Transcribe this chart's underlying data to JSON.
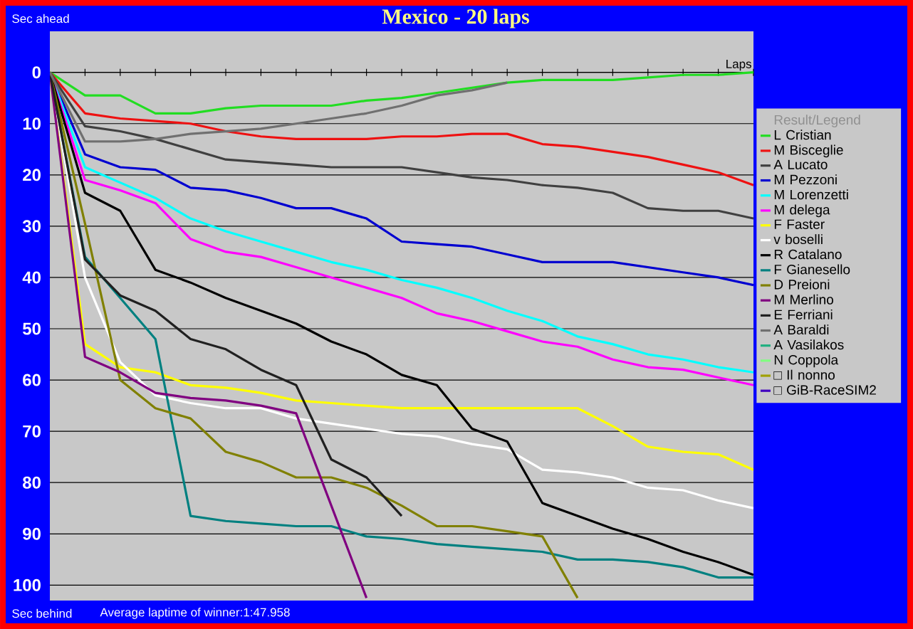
{
  "chart_data": {
    "type": "line",
    "title": "Mexico - 20 laps",
    "xlabel": "Laps",
    "legend_title": "Result/Legend",
    "annotations": [
      "Sec ahead",
      "Sec behind",
      "Average laptime of winner:1:47.958"
    ],
    "categories": [
      null,
      null,
      null,
      null,
      null,
      null,
      null,
      null,
      null,
      null,
      null,
      null,
      null,
      null,
      null,
      null,
      null,
      null,
      null,
      null,
      null
    ],
    "ylim": [
      103,
      -8
    ],
    "yticks": [
      0,
      10,
      20,
      30,
      40,
      50,
      60,
      70,
      80,
      90,
      100
    ],
    "grid": "y",
    "legend": "right",
    "series": [
      {
        "name": "L Cristian",
        "color": "#22dd22",
        "values": [
          0,
          4.5,
          4.5,
          8,
          8,
          7,
          6.5,
          6.5,
          6.5,
          5.5,
          5,
          4,
          3,
          2,
          1.5,
          1.5,
          1.5,
          1,
          0.5,
          0.5,
          0
        ]
      },
      {
        "name": "M Bisceglie",
        "color": "#ee1111",
        "values": [
          0,
          8,
          9,
          9.5,
          10,
          11.5,
          12.5,
          13,
          13,
          13,
          12.5,
          12.5,
          12,
          12,
          14,
          14.5,
          15.5,
          16.5,
          18,
          19.5,
          22
        ]
      },
      {
        "name": "A Lucato",
        "color": "#404040",
        "values": [
          0,
          10.5,
          11.5,
          13,
          15,
          17,
          17.5,
          18,
          18.5,
          18.5,
          18.5,
          19.5,
          20.5,
          21,
          22,
          22.5,
          23.5,
          26.5,
          27,
          27,
          28.5
        ]
      },
      {
        "name": "M Pezzoni",
        "color": "#0000d0",
        "values": [
          0,
          16,
          18.5,
          19,
          22.5,
          23,
          24.5,
          26.5,
          26.5,
          28.5,
          33,
          33.5,
          34,
          35.5,
          37,
          37,
          37,
          38,
          39,
          40,
          41.5
        ]
      },
      {
        "name": "M Lorenzetti",
        "color": "#00ffff",
        "values": [
          0,
          18.5,
          21.5,
          24.5,
          28.5,
          31,
          33,
          35,
          37,
          38.5,
          40.5,
          42,
          44,
          46.5,
          48.5,
          51.5,
          53,
          55,
          56,
          57.5,
          58.5
        ]
      },
      {
        "name": "M delega",
        "color": "#ff00ff",
        "values": [
          0,
          21,
          23,
          25.5,
          32.5,
          35,
          36,
          38,
          40,
          42,
          44,
          47,
          48.5,
          50.5,
          52.5,
          53.5,
          56,
          57.5,
          58,
          59.5,
          61
        ]
      },
      {
        "name": "F Faster",
        "color": "#ffff00",
        "values": [
          0,
          53,
          57.5,
          58.5,
          61,
          61.5,
          62.5,
          64,
          64.5,
          65,
          65.5,
          65.5,
          65.5,
          65.5,
          65.5,
          65.5,
          69,
          73,
          74,
          74.5,
          77.5
        ]
      },
      {
        "name": "v boselli",
        "color": "#ffffff",
        "values": [
          0,
          40,
          56.5,
          63,
          64.5,
          65.5,
          65.5,
          67.5,
          68.5,
          69.5,
          70.5,
          71,
          72.5,
          73.5,
          77.5,
          78,
          79,
          81,
          81.5,
          83.5,
          85
        ]
      },
      {
        "name": "R Catalano",
        "color": "#000000",
        "values": [
          0,
          23.5,
          27,
          38.5,
          41,
          44,
          46.5,
          49,
          52.5,
          55,
          59,
          61,
          69.5,
          72,
          84,
          86.5,
          89,
          91,
          93.5,
          95.5,
          98
        ]
      },
      {
        "name": "F Gianesello",
        "color": "#008080",
        "values": [
          0,
          36,
          44,
          52,
          86.5,
          87.5,
          88,
          88.5,
          88.5,
          90.5,
          91,
          92,
          92.5,
          93,
          93.5,
          95,
          95,
          95.5,
          96.5,
          98.5,
          98.5
        ]
      },
      {
        "name": "D Preioni",
        "color": "#808000",
        "values": [
          0,
          29.5,
          60,
          65.5,
          67.5,
          74,
          76,
          79,
          79,
          81,
          84.5,
          88.5,
          88.5,
          89.5,
          90.5,
          102.5,
          null,
          null,
          null,
          null,
          null
        ]
      },
      {
        "name": "M Merlino",
        "color": "#800080",
        "values": [
          0,
          55.5,
          58.5,
          62.5,
          63.5,
          64,
          65,
          66.5,
          84.5,
          102.5,
          null,
          null,
          null,
          null,
          null,
          null,
          null,
          null,
          null,
          null,
          null
        ]
      },
      {
        "name": "E Ferriani",
        "color": "#202020",
        "values": [
          0,
          36.5,
          43.5,
          46.5,
          52,
          54,
          58,
          61,
          75.5,
          79,
          86.5,
          null,
          null,
          null,
          null,
          null,
          null,
          null,
          null,
          null,
          null
        ]
      },
      {
        "name": "A Baraldi",
        "color": "#707070",
        "values": [
          0,
          13.5,
          13.5,
          13,
          12,
          11.5,
          11,
          10,
          9,
          8,
          6.5,
          4.5,
          3.5,
          2,
          null,
          null,
          null,
          null,
          null,
          null,
          null
        ]
      },
      {
        "name": "A Vasilakos",
        "color": "#20b080",
        "values": [
          null,
          null,
          null,
          null,
          null,
          null,
          null,
          null,
          null,
          null,
          null,
          null,
          null,
          null,
          null,
          null,
          null,
          null,
          null,
          null,
          null
        ]
      },
      {
        "name": "N Coppola",
        "color": "#80ff80",
        "values": [
          null,
          null,
          null,
          null,
          null,
          null,
          null,
          null,
          null,
          null,
          null,
          null,
          null,
          null,
          null,
          null,
          null,
          null,
          null,
          null,
          null
        ]
      },
      {
        "name": "□ Il nonno",
        "color": "#a0a000",
        "values": [
          null,
          null,
          null,
          null,
          null,
          null,
          null,
          null,
          null,
          null,
          null,
          null,
          null,
          null,
          null,
          null,
          null,
          null,
          null,
          null,
          null
        ]
      },
      {
        "name": "□ GiB-RaceSIM2",
        "color": "#4000c0",
        "values": [
          null,
          null,
          null,
          null,
          null,
          null,
          null,
          null,
          null,
          null,
          null,
          null,
          null,
          null,
          null,
          null,
          null,
          null,
          null,
          null,
          null
        ]
      }
    ]
  }
}
